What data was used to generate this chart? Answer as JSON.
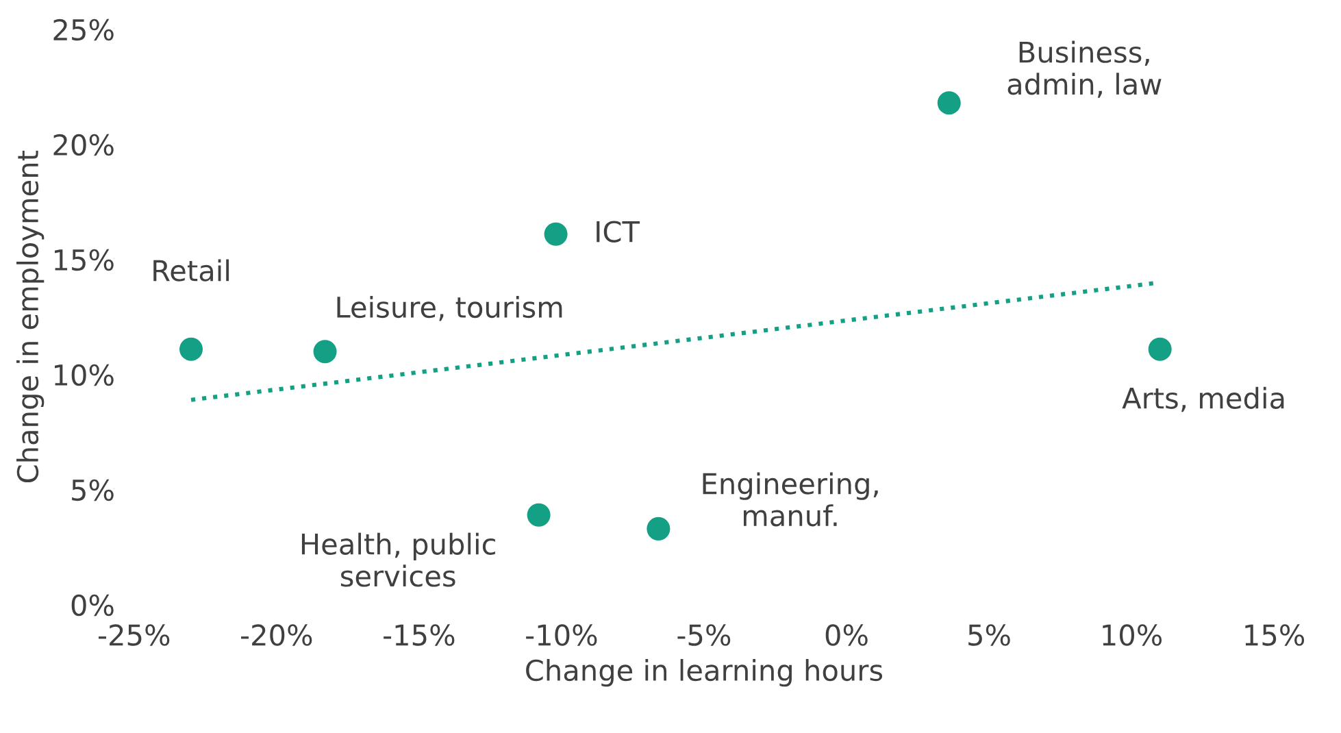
{
  "chart_data": {
    "type": "scatter",
    "xlabel": "Change in learning hours",
    "ylabel": "Change in employment",
    "series": [
      {
        "color": "#14a085",
        "x": [
          -23.0,
          -18.3,
          -10.2,
          3.6,
          11.0,
          -10.8,
          -6.6
        ],
        "values": [
          11.1,
          11.0,
          16.1,
          21.8,
          11.1,
          3.9,
          3.3
        ],
        "marker": "circle"
      },
      {
        "type": "line",
        "color": "#14a085",
        "x": [
          -23.0,
          11.0
        ],
        "values": [
          8.9,
          14.0
        ],
        "line_style": "dotted"
      }
    ],
    "annotations": [
      {
        "text": "Retail",
        "x": -23.0,
        "y": 11.1
      },
      {
        "text": "Leisure, tourism",
        "x": -18.3,
        "y": 11.0
      },
      {
        "text": "ICT",
        "x": -10.2,
        "y": 16.1
      },
      {
        "text": "Business,\nadmin, law",
        "x": 3.6,
        "y": 21.8
      },
      {
        "text": "Arts, media",
        "x": 11.0,
        "y": 11.1
      },
      {
        "text": "Health, public\nservices",
        "x": -10.8,
        "y": 3.9
      },
      {
        "text": "Engineering,\nmanuf.",
        "x": -6.6,
        "y": 3.3
      }
    ],
    "xlim": [
      -25,
      15
    ],
    "xticks": [
      {
        "value": -25,
        "label": "-25%"
      },
      {
        "value": -20,
        "label": "-20%"
      },
      {
        "value": -15,
        "label": "-15%"
      },
      {
        "value": -10,
        "label": "-10%"
      },
      {
        "value": -5,
        "label": "-5%"
      },
      {
        "value": 0,
        "label": "0%"
      },
      {
        "value": 5,
        "label": "5%"
      },
      {
        "value": 10,
        "label": "10%"
      },
      {
        "value": 15,
        "label": "15%"
      }
    ],
    "ylim": [
      0,
      25
    ],
    "yticks": [
      {
        "value": 0,
        "label": "0%"
      },
      {
        "value": 5,
        "label": "5%"
      },
      {
        "value": 10,
        "label": "10%"
      },
      {
        "value": 15,
        "label": "15%"
      },
      {
        "value": 20,
        "label": "20%"
      },
      {
        "value": 25,
        "label": "25%"
      }
    ],
    "grid": false,
    "legend": false
  }
}
